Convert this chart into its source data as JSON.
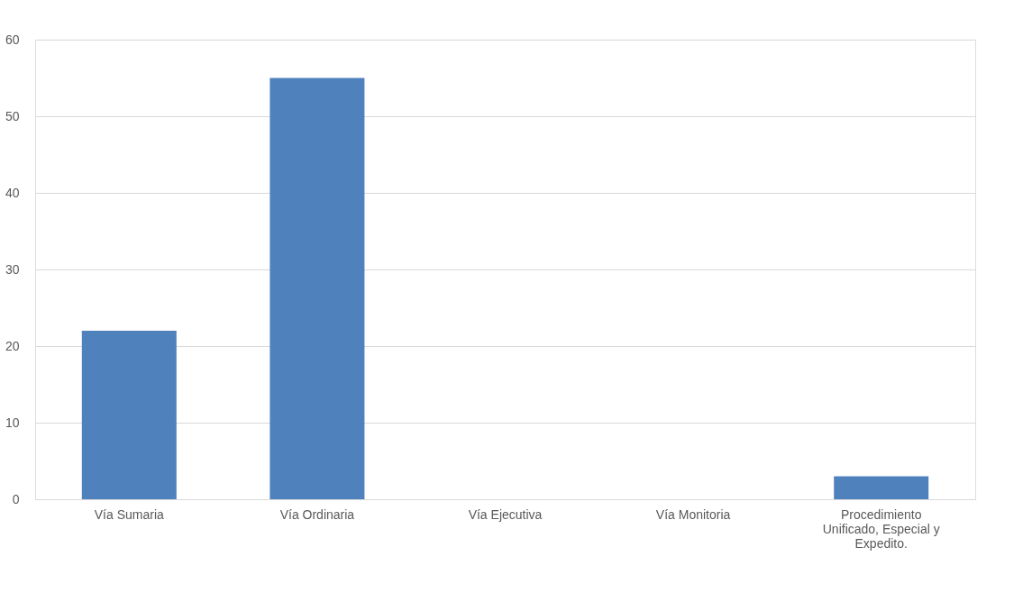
{
  "chart_data": {
    "type": "bar",
    "categories": [
      "Vía Sumaria",
      "Vía Ordinaria",
      "Vía Ejecutiva",
      "Vía Monitoria",
      "Procedimiento Unificado, Especial y Expedito."
    ],
    "values": [
      22,
      55,
      0,
      0,
      3
    ],
    "color": "#4f81bd",
    "ylim": [
      0,
      60
    ],
    "yticks": [
      0,
      10,
      20,
      30,
      40,
      50,
      60
    ],
    "grid": "y"
  }
}
